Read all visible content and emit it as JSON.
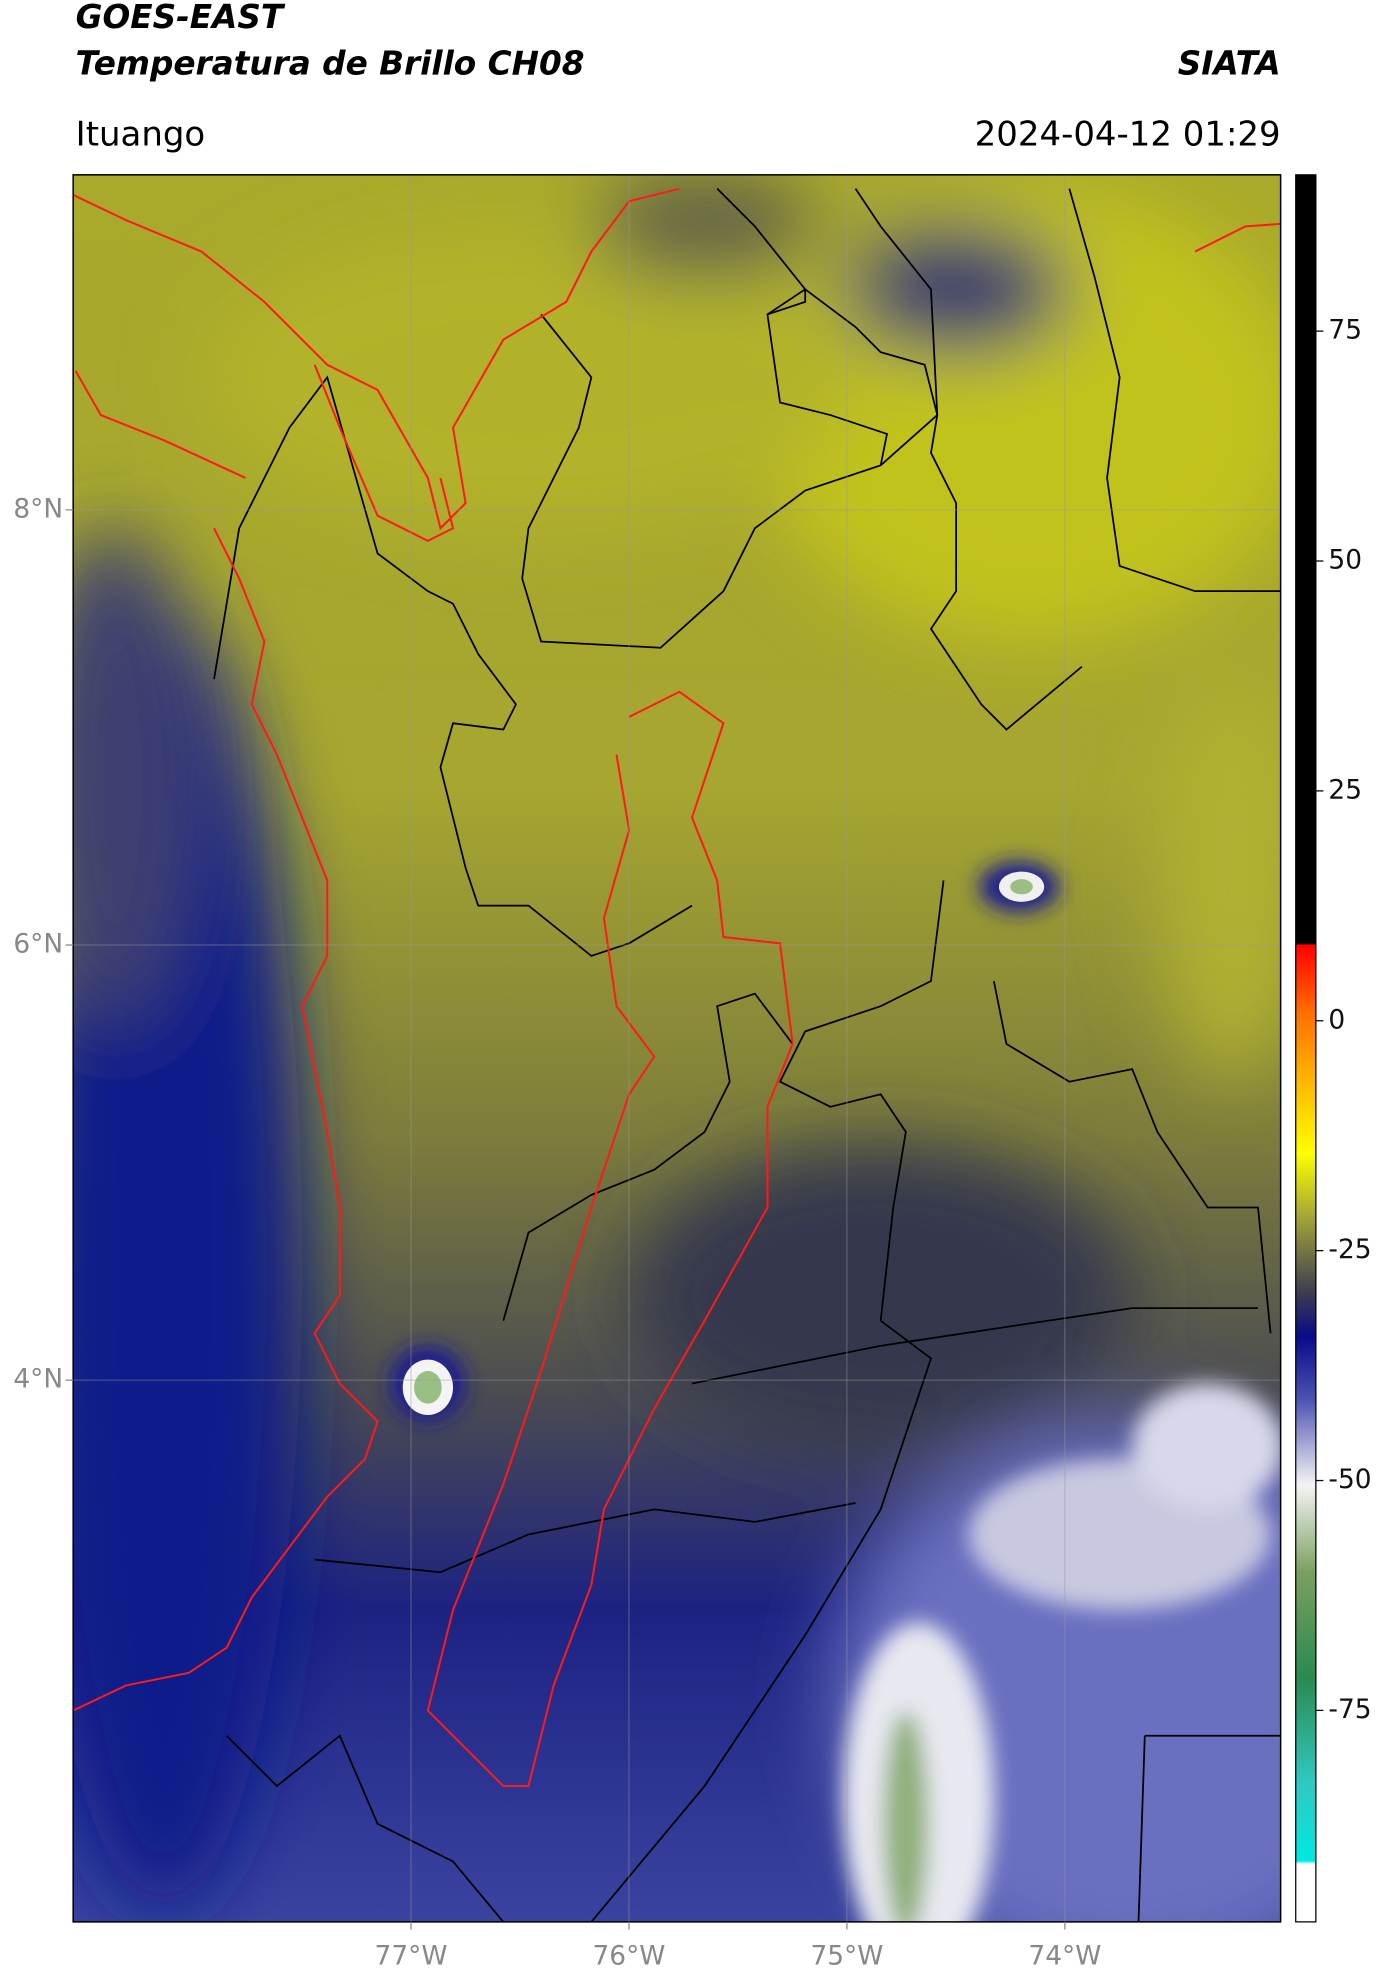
{
  "header": {
    "title": "GOES-EAST",
    "subtitle": "Temperatura de Brillo CH08",
    "organization": "SIATA",
    "region": "Ituango",
    "timestamp": "2024-04-12 01:29"
  },
  "map": {
    "xlim": [
      -78.55,
      -73.01
    ],
    "ylim": [
      1.51,
      9.54
    ],
    "xticks": [
      {
        "value": -77,
        "label": "77°W"
      },
      {
        "value": -76,
        "label": "76°W"
      },
      {
        "value": -75,
        "label": "75°W"
      },
      {
        "value": -74,
        "label": "74°W"
      }
    ],
    "yticks": [
      {
        "value": 8,
        "label": "8°N"
      },
      {
        "value": 6,
        "label": "6°N"
      },
      {
        "value": 4,
        "label": "4°N"
      }
    ]
  },
  "colorbar": {
    "lim": [
      -98,
      92
    ],
    "ticks": [
      75,
      50,
      25,
      0,
      -25,
      -50,
      -75
    ]
  }
}
